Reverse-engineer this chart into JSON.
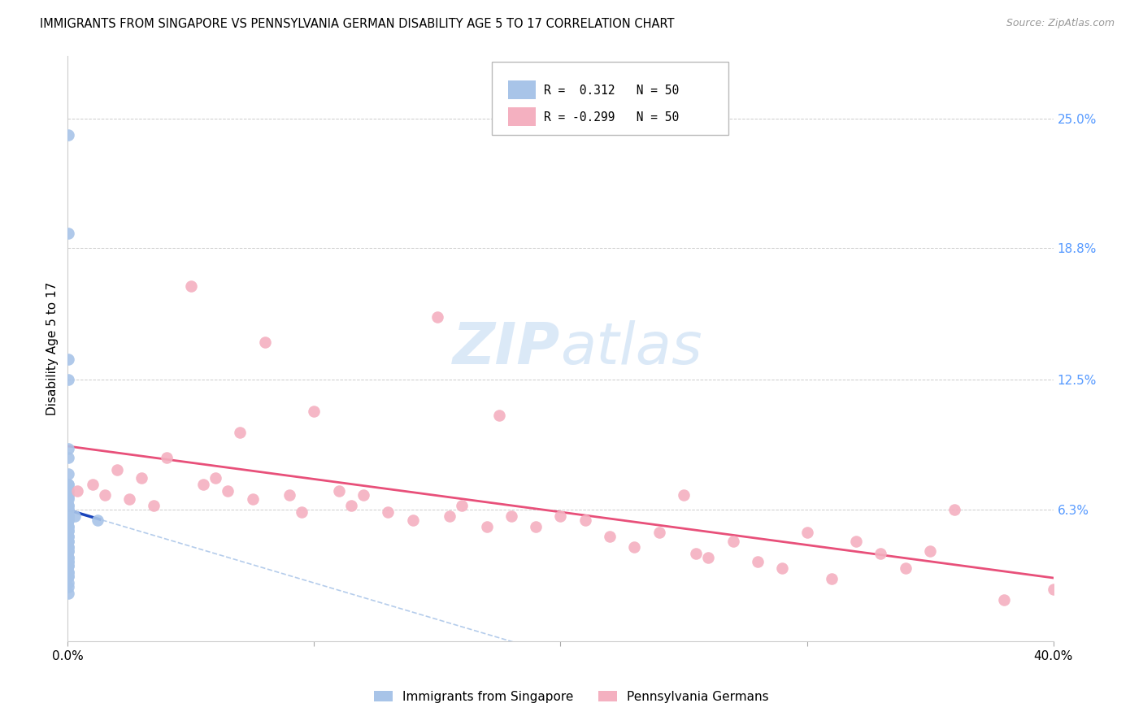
{
  "title": "IMMIGRANTS FROM SINGAPORE VS PENNSYLVANIA GERMAN DISABILITY AGE 5 TO 17 CORRELATION CHART",
  "source": "Source: ZipAtlas.com",
  "ylabel": "Disability Age 5 to 17",
  "xlim": [
    0.0,
    0.4
  ],
  "ylim": [
    0.0,
    0.28
  ],
  "blue_R": 0.312,
  "blue_N": 50,
  "pink_R": -0.299,
  "pink_N": 50,
  "legend_blue_label": "Immigrants from Singapore",
  "legend_pink_label": "Pennsylvania Germans",
  "blue_color": "#a8c4e8",
  "pink_color": "#f4b0c0",
  "trend_blue_solid_color": "#1a44bb",
  "trend_blue_dash_color": "#a8c4e8",
  "trend_pink_color": "#e8507a",
  "right_tick_color": "#5599ff",
  "watermark_color": "#cde0f5",
  "blue_scatter_x": [
    0.0001,
    0.0002,
    0.0001,
    0.0001,
    0.0002,
    0.0001,
    0.0001,
    0.0003,
    0.0001,
    0.0001,
    0.0002,
    0.0001,
    0.0001,
    0.0001,
    0.0002,
    0.0001,
    0.0001,
    0.0002,
    0.0001,
    0.0001,
    0.0001,
    0.0001,
    0.0002,
    0.0001,
    0.0001,
    0.0001,
    0.0001,
    0.0001,
    0.0002,
    0.0001,
    0.0001,
    0.0001,
    0.0001,
    0.0001,
    0.0001,
    0.0001,
    0.0001,
    0.0001,
    0.0001,
    0.0001,
    0.0001,
    0.0001,
    0.0001,
    0.0001,
    0.0001,
    0.0001,
    0.0001,
    0.0001,
    0.003,
    0.012
  ],
  "blue_scatter_y": [
    0.242,
    0.195,
    0.135,
    0.125,
    0.092,
    0.088,
    0.08,
    0.075,
    0.072,
    0.069,
    0.065,
    0.063,
    0.06,
    0.058,
    0.055,
    0.053,
    0.05,
    0.048,
    0.045,
    0.043,
    0.04,
    0.038,
    0.036,
    0.033,
    0.031,
    0.028,
    0.026,
    0.023,
    0.06,
    0.06,
    0.075,
    0.07,
    0.068,
    0.065,
    0.063,
    0.06,
    0.058,
    0.055,
    0.053,
    0.05,
    0.048,
    0.045,
    0.043,
    0.04,
    0.038,
    0.036,
    0.033,
    0.031,
    0.06,
    0.058
  ],
  "pink_scatter_x": [
    0.004,
    0.01,
    0.02,
    0.015,
    0.025,
    0.03,
    0.035,
    0.04,
    0.05,
    0.055,
    0.06,
    0.065,
    0.07,
    0.075,
    0.08,
    0.09,
    0.095,
    0.1,
    0.11,
    0.115,
    0.12,
    0.13,
    0.14,
    0.15,
    0.155,
    0.16,
    0.17,
    0.175,
    0.18,
    0.19,
    0.2,
    0.21,
    0.22,
    0.23,
    0.24,
    0.25,
    0.255,
    0.26,
    0.27,
    0.28,
    0.29,
    0.3,
    0.31,
    0.32,
    0.33,
    0.34,
    0.35,
    0.36,
    0.38,
    0.4
  ],
  "pink_scatter_y": [
    0.072,
    0.075,
    0.082,
    0.07,
    0.068,
    0.078,
    0.065,
    0.088,
    0.17,
    0.075,
    0.078,
    0.072,
    0.1,
    0.068,
    0.143,
    0.07,
    0.062,
    0.11,
    0.072,
    0.065,
    0.07,
    0.062,
    0.058,
    0.155,
    0.06,
    0.065,
    0.055,
    0.108,
    0.06,
    0.055,
    0.06,
    0.058,
    0.05,
    0.045,
    0.052,
    0.07,
    0.042,
    0.04,
    0.048,
    0.038,
    0.035,
    0.052,
    0.03,
    0.048,
    0.042,
    0.035,
    0.043,
    0.063,
    0.02,
    0.025
  ]
}
